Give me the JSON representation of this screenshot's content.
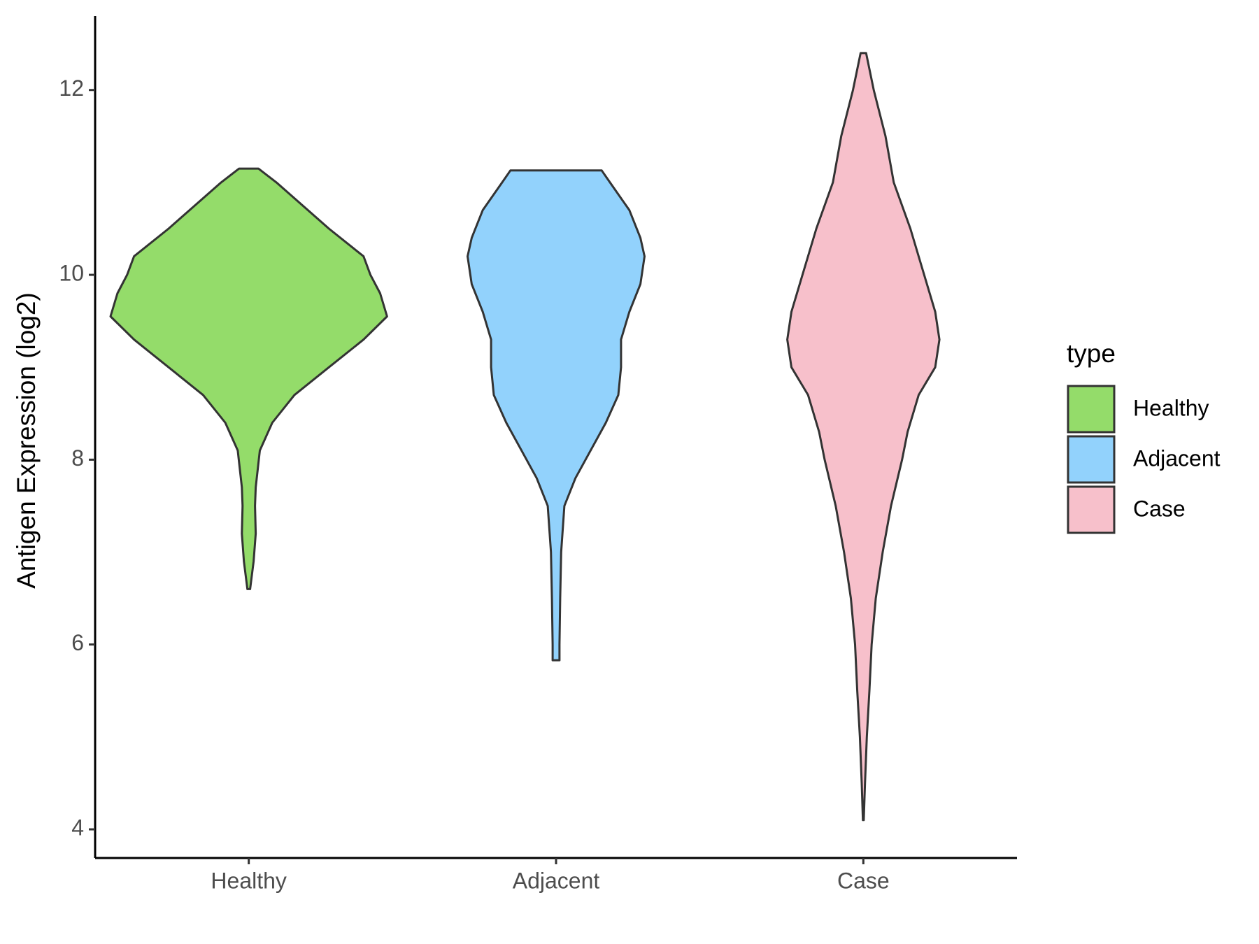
{
  "chart_data": {
    "type": "violin",
    "y_label": "Antigen Expression (log2)",
    "legend_title": "type",
    "legend_position": "right",
    "categories": [
      "Healthy",
      "Adjacent",
      "Case"
    ],
    "ylim": [
      3.69,
      12.8
    ],
    "yticks": [
      4,
      6,
      8,
      10,
      12
    ],
    "grid": false,
    "series": [
      {
        "name": "Healthy",
        "color": "#94dc6a",
        "y": [
          11.15,
          11.0,
          10.5,
          10.2,
          10.0,
          9.8,
          9.55,
          9.3,
          9.0,
          8.7,
          8.4,
          8.1,
          7.7,
          7.5,
          7.2,
          6.9,
          6.6
        ],
        "density": [
          0.07,
          0.2,
          0.58,
          0.83,
          0.88,
          0.95,
          1.0,
          0.83,
          0.58,
          0.33,
          0.17,
          0.08,
          0.05,
          0.045,
          0.05,
          0.035,
          0.01
        ]
      },
      {
        "name": "Adjacent",
        "color": "#92d2fc",
        "y": [
          11.13,
          11.0,
          10.7,
          10.4,
          10.2,
          9.9,
          9.6,
          9.3,
          9.0,
          8.7,
          8.4,
          8.1,
          7.8,
          7.5,
          7.0,
          6.5,
          6.0,
          5.83
        ],
        "density": [
          0.33,
          0.39,
          0.53,
          0.61,
          0.64,
          0.61,
          0.53,
          0.47,
          0.47,
          0.45,
          0.36,
          0.25,
          0.14,
          0.06,
          0.037,
          0.03,
          0.025,
          0.025
        ]
      },
      {
        "name": "Case",
        "color": "#f7c0cb",
        "y": [
          12.4,
          12.0,
          11.5,
          11.0,
          10.5,
          10.0,
          9.6,
          9.3,
          9.0,
          8.7,
          8.3,
          8.0,
          7.5,
          7.0,
          6.5,
          6.0,
          5.5,
          5.0,
          4.5,
          4.1
        ],
        "density": [
          0.02,
          0.075,
          0.16,
          0.22,
          0.34,
          0.44,
          0.52,
          0.55,
          0.52,
          0.4,
          0.32,
          0.28,
          0.2,
          0.14,
          0.09,
          0.06,
          0.044,
          0.025,
          0.012,
          0.003
        ]
      }
    ]
  }
}
